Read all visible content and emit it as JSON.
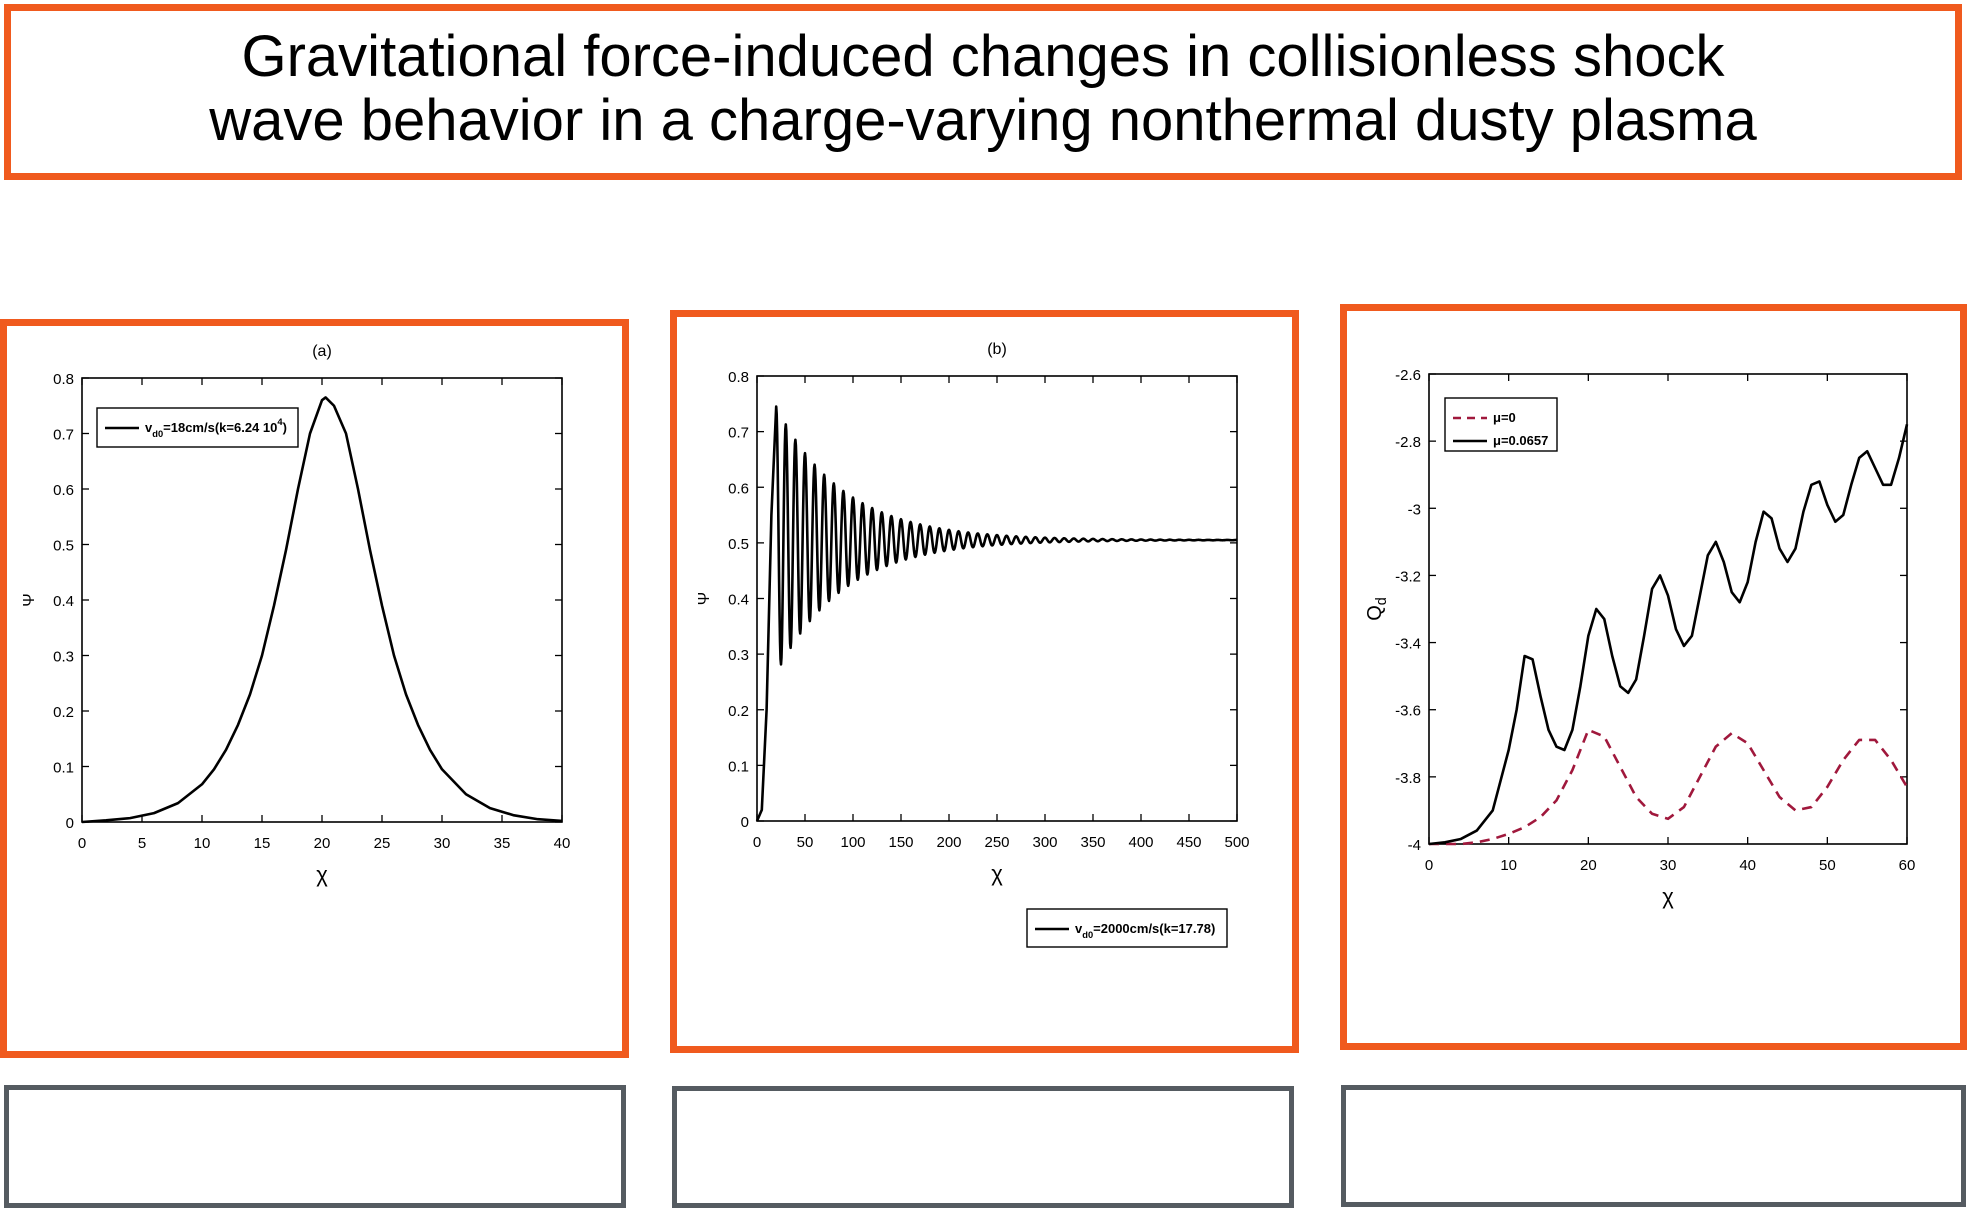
{
  "figure": {
    "title": "Gravitational force-induced changes in collisionless shock\nwave behavior in a charge-varying nonthermal dusty plasma",
    "colors": {
      "accent_border": "#f05a1e",
      "caption_border": "#555b61"
    }
  },
  "chart_data": [
    {
      "type": "line",
      "title": "(a)",
      "xlabel": "χ",
      "ylabel": "Ψ",
      "xlim": [
        0,
        40
      ],
      "ylim": [
        0,
        0.8
      ],
      "xticks": [
        "0",
        "5",
        "10",
        "15",
        "20",
        "25",
        "30",
        "35",
        "40"
      ],
      "yticks": [
        "0",
        "0.1",
        "0.2",
        "0.3",
        "0.4",
        "0.5",
        "0.6",
        "0.7",
        "0.8"
      ],
      "legend_position": "top-left",
      "series": [
        {
          "name": "v_d0=18cm/s(k=6.24 10^4)",
          "color": "#000000",
          "style": "solid",
          "x": [
            0,
            2,
            4,
            6,
            8,
            10,
            11,
            12,
            13,
            14,
            15,
            16,
            17,
            18,
            19,
            20,
            20.3,
            21,
            22,
            23,
            24,
            25,
            26,
            27,
            28,
            29,
            30,
            32,
            34,
            36,
            38,
            40
          ],
          "y": [
            0.0,
            0.003,
            0.007,
            0.016,
            0.034,
            0.068,
            0.095,
            0.13,
            0.175,
            0.23,
            0.3,
            0.39,
            0.49,
            0.6,
            0.7,
            0.76,
            0.765,
            0.75,
            0.7,
            0.6,
            0.49,
            0.39,
            0.3,
            0.23,
            0.175,
            0.13,
            0.095,
            0.05,
            0.025,
            0.012,
            0.005,
            0.002
          ]
        }
      ]
    },
    {
      "type": "line",
      "title": "(b)",
      "xlabel": "χ",
      "ylabel": "Ψ",
      "xlim": [
        0,
        500
      ],
      "ylim": [
        0,
        0.8
      ],
      "xticks": [
        "0",
        "50",
        "100",
        "150",
        "200",
        "250",
        "300",
        "350",
        "400",
        "450",
        "500"
      ],
      "yticks": [
        "0",
        "0.1",
        "0.2",
        "0.3",
        "0.4",
        "0.5",
        "0.6",
        "0.7",
        "0.8"
      ],
      "legend_position": "bottom-right",
      "series": [
        {
          "name": "v_d0=2000cm/s(k=17.78)",
          "color": "#000000",
          "style": "solid",
          "x": [
            0,
            5,
            10,
            15,
            20
          ],
          "y": [
            0,
            0.02,
            0.2,
            0.55,
            0.745
          ],
          "oscillation": {
            "start_x": 20,
            "mean": 0.505,
            "initial_amplitude": 0.24,
            "decay_length": 70,
            "period": 10
          }
        }
      ]
    },
    {
      "type": "line",
      "title": "",
      "xlabel": "χ",
      "ylabel": "Q_d",
      "xlim": [
        0,
        60
      ],
      "ylim": [
        -4,
        -2.6
      ],
      "xticks": [
        "0",
        "10",
        "20",
        "30",
        "40",
        "50",
        "60"
      ],
      "yticks": [
        "-4",
        "-3.8",
        "-3.6",
        "-3.4",
        "-3.2",
        "-3",
        "-2.8",
        "-2.6"
      ],
      "legend_position": "top-left",
      "series": [
        {
          "name": "μ=0",
          "color": "#a0183c",
          "style": "dashed",
          "x": [
            0,
            4,
            6,
            8,
            10,
            12,
            14,
            16,
            18,
            20,
            22,
            24,
            26,
            28,
            30,
            32,
            34,
            36,
            38,
            40,
            42,
            44,
            46,
            48,
            50,
            52,
            54,
            56,
            58,
            60
          ],
          "y": [
            -4.0,
            -4.0,
            -3.995,
            -3.985,
            -3.97,
            -3.95,
            -3.92,
            -3.87,
            -3.78,
            -3.66,
            -3.68,
            -3.77,
            -3.86,
            -3.91,
            -3.925,
            -3.89,
            -3.8,
            -3.71,
            -3.67,
            -3.7,
            -3.78,
            -3.86,
            -3.9,
            -3.89,
            -3.83,
            -3.75,
            -3.69,
            -3.69,
            -3.75,
            -3.83
          ]
        },
        {
          "name": "μ=0.0657",
          "color": "#000000",
          "style": "solid",
          "x": [
            0,
            2,
            4,
            6,
            8,
            10,
            11,
            12,
            13,
            14,
            15,
            16,
            17,
            18,
            19,
            20,
            21,
            22,
            23,
            24,
            25,
            26,
            27,
            28,
            29,
            30,
            31,
            32,
            33,
            34,
            35,
            36,
            37,
            38,
            39,
            40,
            41,
            42,
            43,
            44,
            45,
            46,
            47,
            48,
            49,
            50,
            51,
            52,
            53,
            54,
            55,
            56,
            57,
            58,
            59,
            60
          ],
          "y": [
            -4.0,
            -3.995,
            -3.985,
            -3.96,
            -3.9,
            -3.72,
            -3.6,
            -3.44,
            -3.45,
            -3.56,
            -3.66,
            -3.71,
            -3.72,
            -3.66,
            -3.53,
            -3.38,
            -3.3,
            -3.33,
            -3.44,
            -3.53,
            -3.55,
            -3.51,
            -3.38,
            -3.24,
            -3.2,
            -3.26,
            -3.36,
            -3.41,
            -3.38,
            -3.26,
            -3.14,
            -3.1,
            -3.16,
            -3.25,
            -3.28,
            -3.22,
            -3.1,
            -3.01,
            -3.03,
            -3.12,
            -3.16,
            -3.12,
            -3.01,
            -2.93,
            -2.92,
            -2.99,
            -3.04,
            -3.02,
            -2.93,
            -2.85,
            -2.83,
            -2.88,
            -2.93,
            -2.93,
            -2.85,
            -2.75
          ]
        }
      ]
    }
  ]
}
